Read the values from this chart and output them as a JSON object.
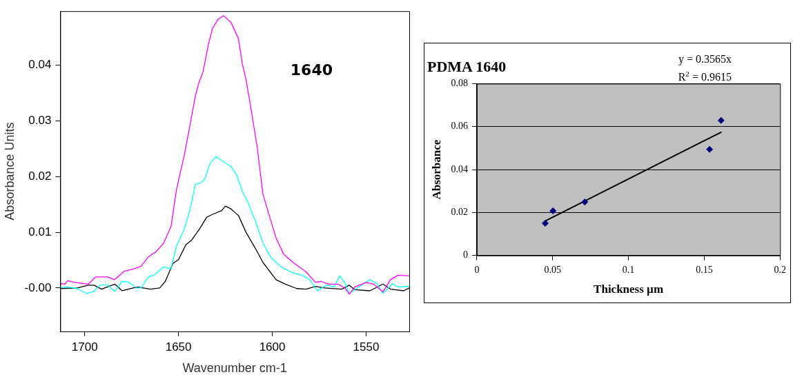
{
  "chart_data": [
    {
      "type": "line",
      "xlabel": "Wavenumber cm-1",
      "ylabel": "Absorbance Units",
      "annotations": [
        "1640"
      ],
      "xlim": [
        1713,
        1527
      ],
      "ylim": [
        -0.0078,
        0.0497
      ],
      "xticks": [
        1700,
        1650,
        1600,
        1550
      ],
      "yticks": [
        {
          "value": 0,
          "label": "-0.00"
        },
        0.01,
        0.02,
        0.03,
        0.04
      ],
      "grid": false,
      "legend": false,
      "x": [
        1713,
        1710.6,
        1709,
        1705,
        1698,
        1694,
        1688,
        1684,
        1679,
        1674,
        1670,
        1666,
        1662,
        1658,
        1654,
        1651,
        1647,
        1644,
        1641,
        1639,
        1637,
        1634,
        1632,
        1629,
        1626,
        1622,
        1618,
        1616,
        1614,
        1612,
        1608,
        1605,
        1602,
        1598,
        1594,
        1589,
        1582,
        1577,
        1574,
        1570,
        1565,
        1561,
        1559,
        1556,
        1550,
        1546,
        1541,
        1537,
        1533,
        1527
      ],
      "series": [
        {
          "color": "#ff00ff",
          "values": [
            0.0008,
            0.0007,
            0.0013,
            0.001,
            0.0007,
            0.002,
            0.002,
            0.0015,
            0.003,
            0.0034,
            0.0039,
            0.0056,
            0.0065,
            0.008,
            0.011,
            0.0178,
            0.0237,
            0.029,
            0.0345,
            0.037,
            0.0387,
            0.0438,
            0.0465,
            0.0482,
            0.0489,
            0.0477,
            0.0447,
            0.0403,
            0.0374,
            0.0335,
            0.0252,
            0.0169,
            0.0134,
            0.009,
            0.0061,
            0.0046,
            0.0029,
            0.001,
            0.0012,
            0.0007,
            0.0007,
            -0.0001,
            -0.0011,
            0.0002,
            0.001,
            0.0007,
            -0.0007,
            0.0015,
            0.0023,
            0.0022
          ]
        },
        {
          "color": "#00ffff",
          "x": [
            1713,
            1709,
            1704,
            1699,
            1695,
            1692,
            1688,
            1684,
            1680,
            1677,
            1672,
            1670,
            1666,
            1663,
            1658,
            1654,
            1651,
            1647,
            1644,
            1641,
            1638,
            1636,
            1633,
            1630,
            1626,
            1622,
            1619,
            1616,
            1613,
            1609,
            1605,
            1601,
            1595,
            1589,
            1584,
            1580,
            1576,
            1571,
            1567,
            1564,
            1561,
            1559,
            1554,
            1548,
            1544,
            1541,
            1536,
            1533,
            1527
          ],
          "values": [
            0.0001,
            0.0002,
            -0.0001,
            -0.001,
            -0.0006,
            0.0005,
            0.0006,
            -0.0006,
            0.0012,
            0.0011,
            0,
            0,
            0.002,
            0.0023,
            0.0038,
            0.0034,
            0.0076,
            0.0105,
            0.0139,
            0.0186,
            0.0189,
            0.0196,
            0.0225,
            0.0236,
            0.0227,
            0.0218,
            0.0203,
            0.0174,
            0.0154,
            0.012,
            0.0081,
            0.0056,
            0.0037,
            0.0027,
            0.0023,
            0.0015,
            -0.0005,
            0.0005,
            0.0002,
            0.0022,
            0.0007,
            -0.001,
            0.0002,
            0.0015,
            0.0007,
            -0.001,
            0.0008,
            0.0002,
            0.0003
          ]
        },
        {
          "color": "#000000",
          "x": [
            1713,
            1704,
            1698,
            1695,
            1691,
            1684,
            1680,
            1672,
            1665,
            1660,
            1657,
            1653,
            1650,
            1646,
            1643,
            1639,
            1635,
            1632,
            1627,
            1625,
            1622,
            1618,
            1614,
            1609,
            1605,
            1598,
            1593,
            1587,
            1582,
            1577,
            1572,
            1563,
            1559,
            1556,
            1548,
            1541,
            1537,
            1530,
            1527
          ],
          "values": [
            -0.0001,
            0,
            0.0005,
            0.0005,
            -0.0002,
            0.0007,
            -0.0005,
            0.0002,
            -0.0002,
            0,
            0.0012,
            0.0044,
            0.0051,
            0.0078,
            0.0086,
            0.0105,
            0.0127,
            0.0132,
            0.0139,
            0.0147,
            0.0142,
            0.013,
            0.01,
            0.0071,
            0.0046,
            0.0015,
            0.0007,
            -0.0001,
            -0.0002,
            0.0003,
            0,
            -0.0002,
            0.0005,
            -0.0003,
            -0.0005,
            0.0007,
            -0.0002,
            -0.0005,
            0
          ]
        }
      ]
    },
    {
      "type": "scatter",
      "title": "PDMA 1640",
      "xlabel": "Thickness µm",
      "ylabel": "Absorbance",
      "annotations": [
        "y = 0.3565x",
        "R$^{2}$ = 0.9615"
      ],
      "xlim": [
        0,
        0.2
      ],
      "ylim": [
        0,
        0.08
      ],
      "xticks": [
        0,
        0.05,
        0.1,
        0.15,
        0.2
      ],
      "yticks": [
        0,
        0.02,
        0.04,
        0.06,
        0.08
      ],
      "grid": "y",
      "legend": false,
      "series": [
        {
          "type": "scatter",
          "marker": "diamond",
          "color": "#000080",
          "x": [
            0.0451,
            0.0502,
            0.0712,
            0.1535,
            0.1611
          ],
          "values": [
            0.015,
            0.0208,
            0.0249,
            0.0494,
            0.0629
          ]
        },
        {
          "type": "line",
          "color": "#000000",
          "x": [
            0.0454,
            0.1614
          ],
          "values": [
            0.0162,
            0.0575
          ]
        }
      ]
    }
  ]
}
